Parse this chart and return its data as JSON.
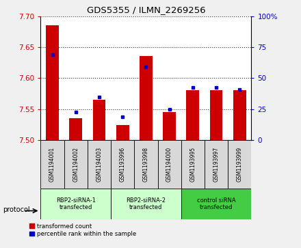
{
  "title": "GDS5355 / ILMN_2269256",
  "samples": [
    "GSM1194001",
    "GSM1194002",
    "GSM1194003",
    "GSM1193996",
    "GSM1193998",
    "GSM1194000",
    "GSM1193995",
    "GSM1193997",
    "GSM1193999"
  ],
  "red_values": [
    7.685,
    7.535,
    7.565,
    7.524,
    7.636,
    7.545,
    7.581,
    7.581,
    7.581
  ],
  "blue_values": [
    7.638,
    7.545,
    7.57,
    7.538,
    7.618,
    7.55,
    7.585,
    7.585,
    7.582
  ],
  "ylim_left": [
    7.5,
    7.7
  ],
  "ylim_right": [
    0,
    100
  ],
  "yticks_left": [
    7.5,
    7.55,
    7.6,
    7.65,
    7.7
  ],
  "yticks_right": [
    0,
    25,
    50,
    75,
    100
  ],
  "groups": [
    {
      "label": "RBP2-siRNA-1\ntransfected",
      "indices": [
        0,
        1,
        2
      ],
      "color": "#ccffcc"
    },
    {
      "label": "RBP2-siRNA-2\ntransfected",
      "indices": [
        3,
        4,
        5
      ],
      "color": "#ccffcc"
    },
    {
      "label": "control siRNA\ntransfected",
      "indices": [
        6,
        7,
        8
      ],
      "color": "#44cc44"
    }
  ],
  "bar_color": "#cc0000",
  "dot_color": "#0000cc",
  "bar_bottom": 7.5,
  "bar_width": 0.55,
  "protocol_label": "protocol",
  "legend_red": "transformed count",
  "legend_blue": "percentile rank within the sample",
  "background_color": "#f0f0f0",
  "plot_bg": "#ffffff",
  "label_color_left": "#cc0000",
  "label_color_right": "#0000cc",
  "sample_box_color": "#d8d8d8",
  "grid_color": "#333333"
}
